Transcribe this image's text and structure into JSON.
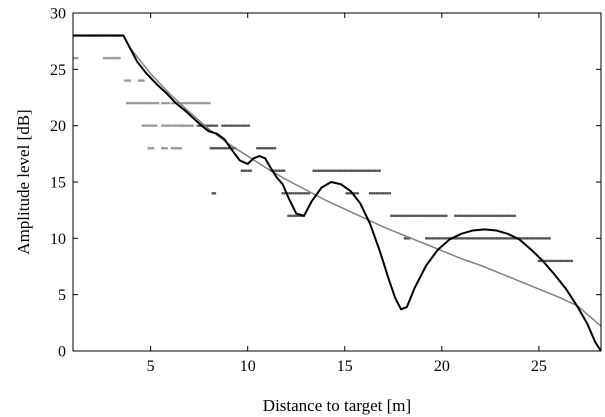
{
  "chart_data": {
    "type": "line",
    "title": "",
    "xlabel": "Distance to target [m]",
    "ylabel": "Amplitude level [dB]",
    "xlim": [
      1,
      28.2
    ],
    "ylim": [
      0,
      30
    ],
    "xticks": [
      5,
      10,
      15,
      20,
      25
    ],
    "yticks": [
      0,
      5,
      10,
      15,
      20,
      25,
      30
    ],
    "grid": false,
    "legend": "none",
    "colors": {
      "model_curve": "#000000",
      "trend_curve": "#808080",
      "dots_light": "#9a9a9a",
      "dots_dark": "#555555",
      "frame": "#000000"
    },
    "series": [
      {
        "kind": "line",
        "color_key": "model_curve",
        "x": [
          1.0,
          3.6,
          3.9,
          4.3,
          4.8,
          5.3,
          5.8,
          6.3,
          6.8,
          7.3,
          7.7,
          8.0,
          8.4,
          8.8,
          9.2,
          9.6,
          10.0,
          10.3,
          10.6,
          10.9,
          11.2,
          11.5,
          11.8,
          12.1,
          12.5,
          12.9,
          13.3,
          13.8,
          14.3,
          14.8,
          15.3,
          15.8,
          16.3,
          16.8,
          17.3,
          17.6,
          17.9,
          18.2,
          18.6,
          19.2,
          19.8,
          20.4,
          21.0,
          21.6,
          22.2,
          22.8,
          23.4,
          24.0,
          24.6,
          25.2,
          25.8,
          26.4,
          27.0,
          27.5,
          27.9,
          28.2
        ],
        "y": [
          28.0,
          28.0,
          27.0,
          25.7,
          24.6,
          23.7,
          22.9,
          22.0,
          21.3,
          20.5,
          19.9,
          19.5,
          19.3,
          18.8,
          17.8,
          16.9,
          16.6,
          17.1,
          17.3,
          17.1,
          16.2,
          15.4,
          14.8,
          13.6,
          12.2,
          12.0,
          13.3,
          14.5,
          15.0,
          14.8,
          14.2,
          13.1,
          11.3,
          8.9,
          6.2,
          4.7,
          3.7,
          3.9,
          5.6,
          7.6,
          9.0,
          9.9,
          10.4,
          10.7,
          10.8,
          10.7,
          10.4,
          9.9,
          9.0,
          8.0,
          6.8,
          5.5,
          3.9,
          2.4,
          0.8,
          0.0
        ]
      },
      {
        "kind": "line",
        "color_key": "trend_curve",
        "x": [
          1.0,
          3.6,
          3.9,
          5.0,
          6.0,
          7.0,
          8.0,
          9.0,
          10.0,
          11.0,
          12.0,
          13.0,
          14.0,
          15.0,
          16.0,
          17.0,
          18.0,
          19.0,
          20.0,
          21.0,
          22.0,
          23.0,
          24.0,
          25.0,
          26.0,
          27.0,
          28.2
        ],
        "y": [
          28.0,
          28.0,
          27.0,
          24.6,
          22.8,
          21.2,
          19.7,
          18.4,
          17.3,
          16.2,
          15.2,
          14.3,
          13.4,
          12.6,
          11.8,
          11.0,
          10.3,
          9.6,
          8.9,
          8.2,
          7.6,
          6.9,
          6.2,
          5.5,
          4.8,
          4.0,
          2.2
        ]
      },
      {
        "kind": "scatter",
        "color_key": "dots_light",
        "segments": [
          {
            "x0": 1.0,
            "x1": 1.3,
            "y": 26
          },
          {
            "x0": 2.6,
            "x1": 3.5,
            "y": 26
          },
          {
            "x0": 3.7,
            "x1": 4.0,
            "y": 24
          },
          {
            "x0": 4.4,
            "x1": 4.7,
            "y": 24
          },
          {
            "x0": 3.8,
            "x1": 5.4,
            "y": 22
          },
          {
            "x0": 5.6,
            "x1": 6.0,
            "y": 22
          },
          {
            "x0": 6.1,
            "x1": 8.1,
            "y": 22
          },
          {
            "x0": 4.6,
            "x1": 5.3,
            "y": 20
          },
          {
            "x0": 5.6,
            "x1": 6.7,
            "y": 20
          },
          {
            "x0": 7.4,
            "x1": 8.1,
            "y": 20
          },
          {
            "x0": 6.1,
            "x1": 6.6,
            "y": 18
          },
          {
            "x0": 4.9,
            "x1": 5.2,
            "y": 18
          },
          {
            "x0": 5.6,
            "x1": 5.9,
            "y": 18
          },
          {
            "x0": 6.6,
            "x1": 7.2,
            "y": 20
          }
        ]
      },
      {
        "kind": "scatter",
        "color_key": "dots_dark",
        "segments": [
          {
            "x0": 1.0,
            "x1": 3.6,
            "y": 28
          },
          {
            "x0": 7.5,
            "x1": 8.5,
            "y": 20
          },
          {
            "x0": 8.7,
            "x1": 10.1,
            "y": 20
          },
          {
            "x0": 8.1,
            "x1": 9.4,
            "y": 18
          },
          {
            "x0": 10.5,
            "x1": 11.5,
            "y": 18
          },
          {
            "x0": 9.7,
            "x1": 10.2,
            "y": 16
          },
          {
            "x0": 11.2,
            "x1": 11.9,
            "y": 16
          },
          {
            "x0": 11.8,
            "x1": 13.2,
            "y": 14
          },
          {
            "x0": 8.2,
            "x1": 8.4,
            "y": 14
          },
          {
            "x0": 12.1,
            "x1": 13.0,
            "y": 12
          },
          {
            "x0": 13.4,
            "x1": 16.8,
            "y": 16
          },
          {
            "x0": 15.1,
            "x1": 15.7,
            "y": 14
          },
          {
            "x0": 16.3,
            "x1": 17.4,
            "y": 14
          },
          {
            "x0": 17.4,
            "x1": 20.3,
            "y": 12
          },
          {
            "x0": 20.7,
            "x1": 23.8,
            "y": 12
          },
          {
            "x0": 18.1,
            "x1": 18.4,
            "y": 10
          },
          {
            "x0": 19.2,
            "x1": 25.6,
            "y": 10
          },
          {
            "x0": 25.0,
            "x1": 26.8,
            "y": 8
          }
        ]
      }
    ]
  }
}
